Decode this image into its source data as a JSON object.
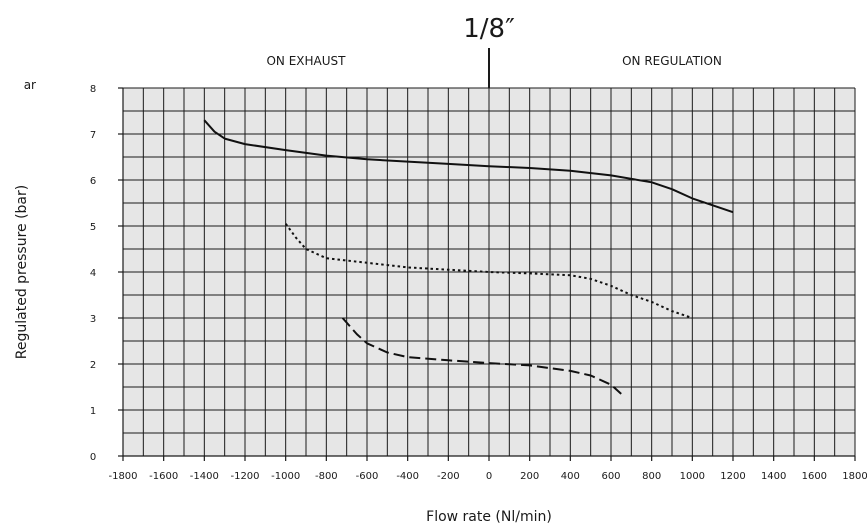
{
  "chart_data": {
    "type": "line",
    "title": "1/8″",
    "corner_text": "ar",
    "xlabel": "Flow rate (Nl/min)",
    "ylabel": "Regulated pressure (bar)",
    "xlim": [
      -1800,
      1800
    ],
    "ylim": [
      0,
      8
    ],
    "x_ticks": [
      -1800,
      -1600,
      -1400,
      -1200,
      -1000,
      -800,
      -600,
      -400,
      -200,
      0,
      200,
      400,
      600,
      800,
      1000,
      1200,
      1400,
      1600,
      1800
    ],
    "y_ticks": [
      0,
      1,
      2,
      3,
      4,
      5,
      6,
      7,
      8
    ],
    "grid": true,
    "x_minor_step": 100,
    "y_minor_step": 0.5,
    "regions": [
      {
        "label": "ON EXHAUST",
        "x_from": -1800,
        "x_to": 0
      },
      {
        "label": "ON REGULATION",
        "x_from": 0,
        "x_to": 1800
      }
    ],
    "series": [
      {
        "line_style": "solid",
        "x": [
          -1400,
          -1350,
          -1300,
          -1200,
          -1000,
          -800,
          -600,
          -400,
          -200,
          0,
          200,
          400,
          600,
          800,
          900,
          1000,
          1100,
          1200
        ],
        "y": [
          7.3,
          7.05,
          6.9,
          6.78,
          6.65,
          6.53,
          6.45,
          6.4,
          6.35,
          6.3,
          6.26,
          6.2,
          6.1,
          5.95,
          5.8,
          5.6,
          5.45,
          5.3
        ]
      },
      {
        "line_style": "dotted",
        "x": [
          -1000,
          -950,
          -900,
          -800,
          -700,
          -600,
          -400,
          -200,
          0,
          200,
          400,
          500,
          600,
          700,
          800,
          900,
          1000
        ],
        "y": [
          5.05,
          4.75,
          4.5,
          4.3,
          4.25,
          4.2,
          4.1,
          4.05,
          4.0,
          3.97,
          3.93,
          3.85,
          3.7,
          3.5,
          3.35,
          3.15,
          3.0
        ]
      },
      {
        "line_style": "dashed",
        "x": [
          -720,
          -650,
          -600,
          -500,
          -400,
          -200,
          0,
          200,
          400,
          500,
          600,
          650
        ],
        "y": [
          3.0,
          2.65,
          2.45,
          2.25,
          2.15,
          2.08,
          2.02,
          1.97,
          1.85,
          1.75,
          1.55,
          1.35
        ]
      }
    ]
  }
}
